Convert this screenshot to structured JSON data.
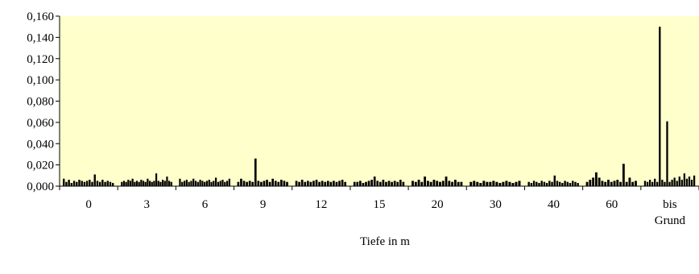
{
  "chart_data": {
    "type": "bar",
    "title": "",
    "xlabel": "Tiefe in m",
    "ylabel": "",
    "ylim": [
      0,
      0.16
    ],
    "ytick_values": [
      0,
      0.02,
      0.04,
      0.06,
      0.08,
      0.1,
      0.12,
      0.14,
      0.16
    ],
    "ytick_labels": [
      "0,000",
      "0,020",
      "0,040",
      "0,060",
      "0,080",
      "0,100",
      "0,120",
      "0,140",
      "0,160"
    ],
    "grid": false,
    "legend": "none",
    "colors": {
      "plot_background": "#ffffcc",
      "bars": "#000000",
      "axes": "#000000"
    },
    "groups": [
      {
        "label": "0",
        "values": [
          0.007,
          0.004,
          0.006,
          0.003,
          0.005,
          0.004,
          0.006,
          0.005,
          0.004,
          0.005,
          0.006,
          0.004,
          0.011,
          0.005,
          0.004,
          0.006,
          0.004,
          0.005,
          0.004,
          0.003
        ]
      },
      {
        "label": "3",
        "values": [
          0.004,
          0.005,
          0.004,
          0.006,
          0.005,
          0.007,
          0.004,
          0.005,
          0.004,
          0.006,
          0.005,
          0.004,
          0.007,
          0.005,
          0.004,
          0.005,
          0.012,
          0.005,
          0.004,
          0.006,
          0.005,
          0.009,
          0.005,
          0.004
        ]
      },
      {
        "label": "6",
        "values": [
          0.007,
          0.004,
          0.005,
          0.006,
          0.004,
          0.005,
          0.007,
          0.005,
          0.004,
          0.006,
          0.005,
          0.004,
          0.005,
          0.006,
          0.004,
          0.005,
          0.008,
          0.004,
          0.005,
          0.006,
          0.004,
          0.005,
          0.007
        ]
      },
      {
        "label": "9",
        "values": [
          0.004,
          0.007,
          0.005,
          0.004,
          0.005,
          0.004,
          0.026,
          0.005,
          0.004,
          0.005,
          0.006,
          0.004,
          0.007,
          0.005,
          0.004,
          0.006,
          0.005,
          0.004
        ]
      },
      {
        "label": "12",
        "values": [
          0.005,
          0.004,
          0.006,
          0.004,
          0.005,
          0.004,
          0.005,
          0.006,
          0.004,
          0.005,
          0.004,
          0.005,
          0.004,
          0.005,
          0.004,
          0.005,
          0.006,
          0.004
        ]
      },
      {
        "label": "15",
        "values": [
          0.004,
          0.004,
          0.005,
          0.003,
          0.004,
          0.005,
          0.006,
          0.009,
          0.005,
          0.004,
          0.006,
          0.004,
          0.005,
          0.004,
          0.005,
          0.004,
          0.006,
          0.004
        ]
      },
      {
        "label": "20",
        "values": [
          0.005,
          0.004,
          0.006,
          0.004,
          0.009,
          0.005,
          0.004,
          0.006,
          0.005,
          0.004,
          0.005,
          0.009,
          0.005,
          0.004,
          0.006,
          0.004,
          0.004
        ]
      },
      {
        "label": "30",
        "values": [
          0.004,
          0.005,
          0.004,
          0.003,
          0.005,
          0.004,
          0.004,
          0.005,
          0.004,
          0.003,
          0.004,
          0.005,
          0.004,
          0.003,
          0.004,
          0.005
        ]
      },
      {
        "label": "40",
        "values": [
          0.004,
          0.003,
          0.005,
          0.004,
          0.003,
          0.005,
          0.004,
          0.003,
          0.005,
          0.004,
          0.01,
          0.005,
          0.004,
          0.003,
          0.005,
          0.004,
          0.003,
          0.005,
          0.004,
          0.003
        ]
      },
      {
        "label": "60",
        "values": [
          0.004,
          0.006,
          0.008,
          0.013,
          0.008,
          0.005,
          0.004,
          0.006,
          0.004,
          0.005,
          0.006,
          0.004,
          0.021,
          0.004,
          0.008,
          0.004,
          0.005
        ]
      },
      {
        "label": "bis Grund",
        "values": [
          0.005,
          0.004,
          0.006,
          0.004,
          0.007,
          0.004,
          0.15,
          0.006,
          0.004,
          0.061,
          0.004,
          0.006,
          0.008,
          0.005,
          0.009,
          0.006,
          0.012,
          0.007,
          0.009,
          0.006,
          0.01
        ]
      }
    ]
  }
}
